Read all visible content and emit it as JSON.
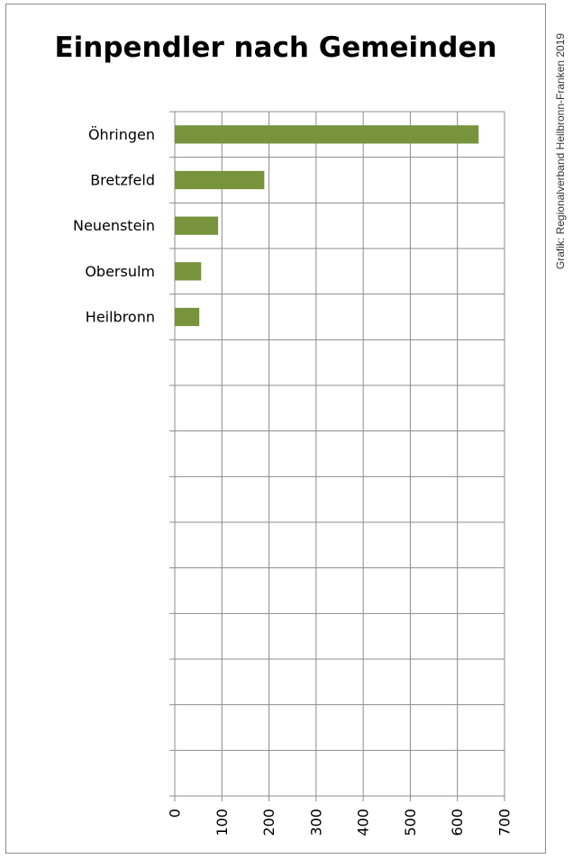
{
  "title": "Einpendler nach Gemeinden",
  "credit": "Grafik: Regionalverband Heilbronn-Franken 2019",
  "colors": {
    "bar": "#77933c",
    "grid": "#8c8c8c",
    "frame": "#8c8c8c"
  },
  "chart_data": {
    "type": "bar",
    "orientation": "horizontal",
    "title": "Einpendler nach Gemeinden",
    "categories": [
      "Öhringen",
      "Bretzfeld",
      "Neuenstein",
      "Obersulm",
      "Heilbronn",
      "",
      "",
      "",
      "",
      "",
      "",
      "",
      "",
      "",
      ""
    ],
    "values": [
      645,
      190,
      92,
      56,
      52,
      null,
      null,
      null,
      null,
      null,
      null,
      null,
      null,
      null,
      null
    ],
    "xlim": [
      0,
      700
    ],
    "xticks": [
      "0",
      "100",
      "200",
      "300",
      "400",
      "500",
      "600",
      "700"
    ],
    "grid": true,
    "legend": "none"
  }
}
